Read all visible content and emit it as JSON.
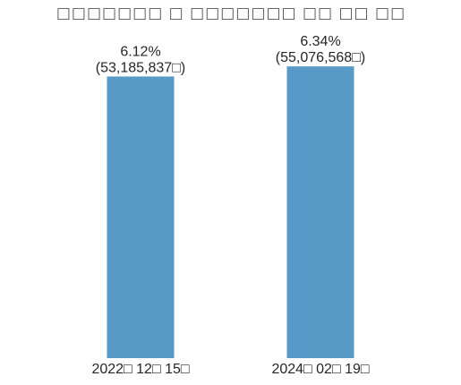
{
  "chart_data": {
    "type": "bar",
    "title": "□□□□□□□ □ □□□□□□□ □□ □□ □□",
    "xlabel": "",
    "ylabel": "",
    "categories": [
      "2022□ 12□ 15□",
      "2024□ 02□ 19□"
    ],
    "values": [
      6.12,
      6.34
    ],
    "value_labels": [
      "6.12%",
      "6.34%"
    ],
    "count_labels": [
      "(53,185,837□)",
      "(55,076,568□)"
    ],
    "ylim": [
      0,
      7.16
    ],
    "grid": false,
    "legend": "none",
    "bar_color": "#5799c7"
  }
}
